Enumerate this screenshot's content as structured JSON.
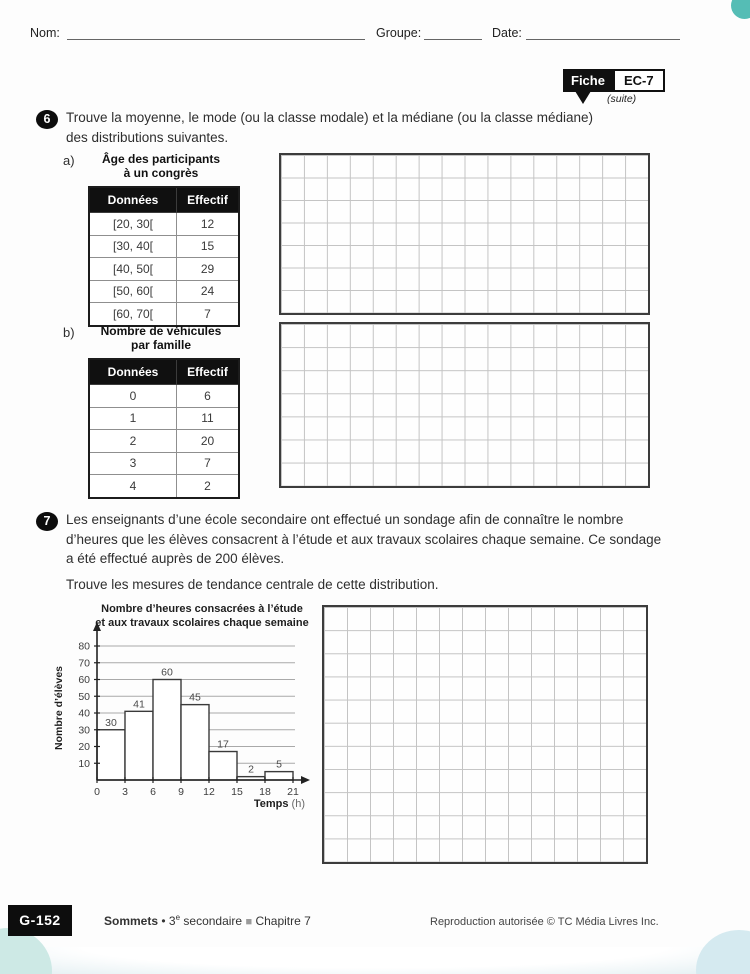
{
  "header": {
    "nom_label": "Nom:",
    "groupe_label": "Groupe:",
    "date_label": "Date:"
  },
  "badge": {
    "fiche": "Fiche",
    "code": "EC-7",
    "suite": "(suite)"
  },
  "q6": {
    "number": "6",
    "line1": "Trouve la moyenne, le mode (ou la classe modale) et la médiane (ou la classe médiane)",
    "line2": "des distributions suivantes.",
    "a": {
      "label": "a)",
      "title_line1": "Âge des participants",
      "title_line2": "à un congrès",
      "table": {
        "headers": [
          "Données",
          "Effectif"
        ],
        "rows": [
          [
            "[20, 30[",
            "12"
          ],
          [
            "[30, 40[",
            "15"
          ],
          [
            "[40, 50[",
            "29"
          ],
          [
            "[50, 60[",
            "24"
          ],
          [
            "[60, 70[",
            "7"
          ]
        ]
      }
    },
    "b": {
      "label": "b)",
      "title_line1": "Nombre de véhicules",
      "title_line2": "par famille",
      "table": {
        "headers": [
          "Données",
          "Effectif"
        ],
        "rows": [
          [
            "0",
            "6"
          ],
          [
            "1",
            "11"
          ],
          [
            "2",
            "20"
          ],
          [
            "3",
            "7"
          ],
          [
            "4",
            "2"
          ]
        ]
      }
    }
  },
  "q7": {
    "number": "7",
    "lines": [
      "Les enseignants d’une école secondaire ont effectué un sondage afin de connaître le nombre",
      "d’heures que les élèves consacrent à l’étude et aux travaux scolaires chaque semaine. Ce sondage",
      "a été effectué auprès de 200 élèves."
    ],
    "prompt": "Trouve les mesures de tendance centrale de cette distribution."
  },
  "chart_data": {
    "type": "bar",
    "title": "Nombre d’heures consacrées à l’étude et aux travaux scolaires chaque semaine",
    "title_lines": [
      "Nombre d’heures consacrées à l’étude",
      "et aux travaux scolaires chaque semaine"
    ],
    "ylabel": "Nombre d’élèves",
    "xlabel": "Temps (h)",
    "xlabel_bold": "Temps",
    "xlabel_unit": "(h)",
    "categories": [
      "[0, 3[",
      "[3, 6[",
      "[6, 9[",
      "[9, 12[",
      "[12, 15[",
      "[15, 18[",
      "[18, 21["
    ],
    "values": [
      30,
      41,
      60,
      45,
      17,
      2,
      5
    ],
    "x_ticks": [
      0,
      3,
      6,
      9,
      12,
      15,
      18,
      21
    ],
    "y_ticks": [
      10,
      20,
      30,
      40,
      50,
      60,
      70,
      80
    ],
    "ylim": [
      0,
      85
    ],
    "grid": true,
    "bar_fill": "#ffffff",
    "bar_stroke": "#3a3a3a",
    "gridline_color": "#a9a9a9"
  },
  "footer": {
    "page_code": "G-152",
    "book": "Sommets",
    "separator": "•",
    "level_num": "3",
    "level_sup": "e",
    "level_text": " secondaire",
    "square": "■",
    "chapter": "Chapitre 7",
    "copyright": "Reproduction autorisée © TC Média Livres Inc."
  },
  "colors": {
    "accent_teal": "#55bdb5",
    "corner_teal_light": "#cde9e5",
    "corner_blue_light": "#d5eaf0",
    "header_fill": "#101010"
  }
}
